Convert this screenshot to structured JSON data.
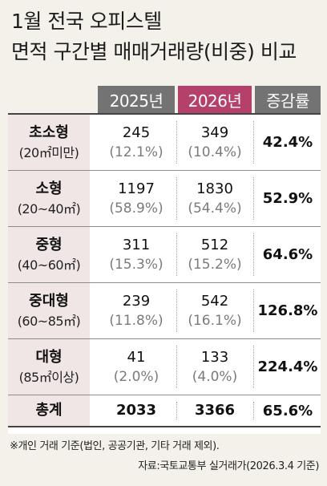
{
  "title": {
    "line1": "1월 전국 오피스텔",
    "line2": "면적 구간별 매매거래량(비중) 비교"
  },
  "headers": {
    "y2025": "2025년",
    "y2026": "2026년",
    "change": "증감률"
  },
  "colors": {
    "header_gray": "#737373",
    "header_2026": "#b5416a",
    "category_bg": "#f0e6e6"
  },
  "rows": [
    {
      "name": "초소형",
      "range": "(20㎡미만)",
      "v2025": "245",
      "p2025": "(12.1%)",
      "v2026": "349",
      "p2026": "(10.4%)",
      "change": "42.4%"
    },
    {
      "name": "소형",
      "range": "(20~40㎡)",
      "v2025": "1197",
      "p2025": "(58.9%)",
      "v2026": "1830",
      "p2026": "(54.4%)",
      "change": "52.9%"
    },
    {
      "name": "중형",
      "range": "(40~60㎡)",
      "v2025": "311",
      "p2025": "(15.3%)",
      "v2026": "512",
      "p2026": "(15.2%)",
      "change": "64.6%"
    },
    {
      "name": "중대형",
      "range": "(60~85㎡)",
      "v2025": "239",
      "p2025": "(11.8%)",
      "v2026": "542",
      "p2026": "(16.1%)",
      "change": "126.8%"
    },
    {
      "name": "대형",
      "range": "(85㎡이상)",
      "v2025": "41",
      "p2025": "(2.0%)",
      "v2026": "133",
      "p2026": "(4.0%)",
      "change": "224.4%"
    }
  ],
  "total": {
    "name": "총계",
    "v2025": "2033",
    "v2026": "3366",
    "change": "65.6%"
  },
  "footnote": "※개인 거래 기준(법인, 공공기관, 기타 거래 제외).",
  "source": "자료:국토교통부 실거래가(2026.3.4 기준)"
}
